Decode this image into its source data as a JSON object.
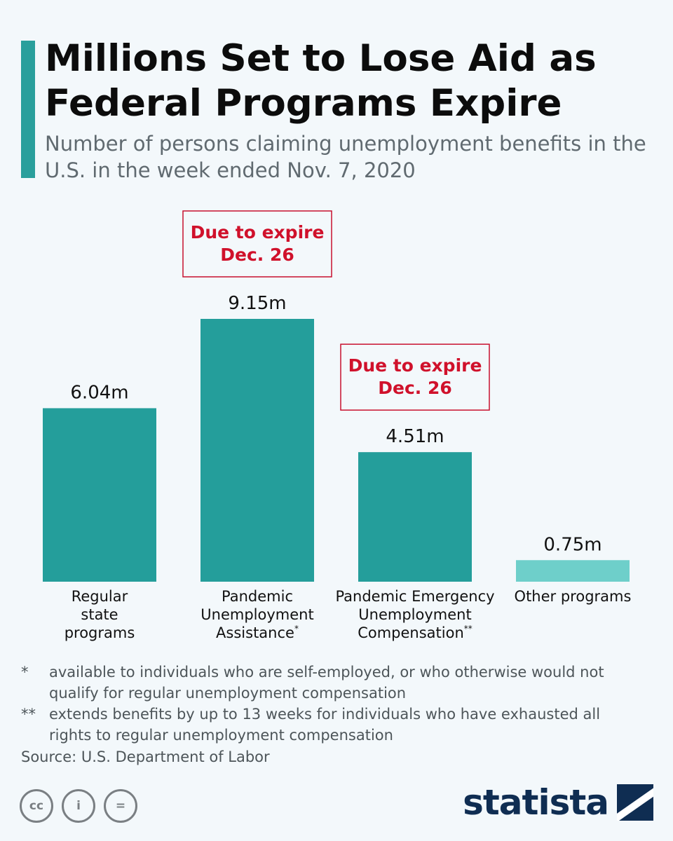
{
  "header": {
    "title": "Millions Set to Lose Aid as Federal Programs Expire",
    "subtitle": "Number of persons claiming unemployment benefits in the U.S. in the week ended Nov. 7, 2020"
  },
  "colors": {
    "accent": "#2a9f9c",
    "bar_primary": "#249e9b",
    "bar_light": "#6ecfca",
    "expire_red": "#d0112b",
    "brand_navy": "#0f2d52"
  },
  "chart_data": {
    "type": "bar",
    "categories": [
      "Regular state programs",
      "Pandemic Unemployment Assistance*",
      "Pandemic Emergency Unemployment Compensation**",
      "Other programs"
    ],
    "category_lines": [
      [
        "Regular",
        "state",
        "programs"
      ],
      [
        "Pandemic",
        "Unemployment",
        "Assistance"
      ],
      [
        "Pandemic Emergency",
        "Unemployment",
        "Compensation"
      ],
      [
        "Other programs"
      ]
    ],
    "category_marks": [
      "",
      "*",
      "**",
      ""
    ],
    "values": [
      6.04,
      9.15,
      4.51,
      0.75
    ],
    "value_labels": [
      "6.04m",
      "9.15m",
      "4.51m",
      "0.75m"
    ],
    "bar_colors": [
      "#249e9b",
      "#249e9b",
      "#249e9b",
      "#6ecfca"
    ],
    "unit": "m",
    "annotations": [
      {
        "category_index": 1,
        "lines": [
          "Due to expire",
          "Dec. 26"
        ]
      },
      {
        "category_index": 2,
        "lines": [
          "Due to expire",
          "Dec. 26"
        ]
      }
    ],
    "ylim": [
      0,
      9.15
    ],
    "grid": false,
    "legend": "none",
    "xlabel": "",
    "ylabel": ""
  },
  "footnotes": [
    {
      "marker": "*",
      "text": "available to individuals who are self-employed, or who otherwise would not qualify for regular unemployment compensation"
    },
    {
      "marker": "**",
      "text": "extends benefits by up to 13 weeks for individuals who have exhausted all rights to regular unemployment compensation"
    }
  ],
  "source": "Source: U.S. Department of Labor",
  "license_icons": [
    {
      "icon": "cc-icon",
      "glyph": "cc"
    },
    {
      "icon": "attribution-icon",
      "glyph": "i"
    },
    {
      "icon": "no-derivatives-icon",
      "glyph": "="
    }
  ],
  "brand": {
    "name": "statista",
    "icon": "statista-logo-icon"
  }
}
